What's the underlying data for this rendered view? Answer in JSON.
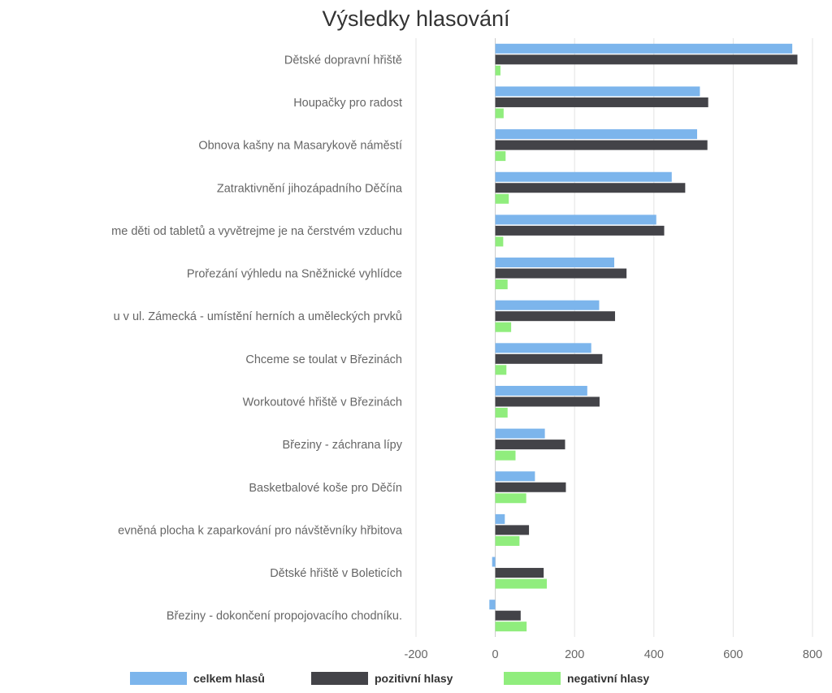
{
  "chart_data": {
    "type": "bar",
    "orientation": "horizontal",
    "title": "Výsledky hlasování",
    "xlabel": "",
    "ylabel": "",
    "xlim": [
      -200,
      800
    ],
    "ticks": [
      -200,
      0,
      200,
      400,
      600,
      800
    ],
    "grid": true,
    "legend_position": "bottom",
    "categories": [
      "Dětské dopravní hřiště",
      "Houpačky pro radost",
      "Obnova kašny na Masarykově náměstí",
      "Zatraktivnění jihozápadního Děčína",
      "me děti od tabletů a vyvětrejme je na čerstvém vzduchu",
      "Prořezání výhledu na Sněžnické vyhlídce",
      "u v ul. Zámecká - umístění herních a uměleckých prvků",
      "Chceme se toulat v Březinách",
      "Workoutové hřiště v Březinách",
      "Březiny - záchrana lípy",
      "Basketbalové koše pro Děčín",
      "evněná plocha k zaparkování pro návštěvníky hřbitova",
      "Dětské hřiště v Boleticích",
      "Březiny - dokončení propojovacího chodníku."
    ],
    "series": [
      {
        "name": "celkem hlasů",
        "color": "#7cb5ec",
        "values": [
          749,
          516,
          509,
          445,
          406,
          300,
          262,
          242,
          232,
          125,
          100,
          24,
          -8,
          -15
        ]
      },
      {
        "name": "pozitivní hlasy",
        "color": "#434348",
        "values": [
          762,
          537,
          535,
          479,
          426,
          331,
          302,
          270,
          263,
          176,
          178,
          85,
          122,
          64
        ]
      },
      {
        "name": "negativní hlasy",
        "color": "#90ed7d",
        "values": [
          13,
          21,
          26,
          34,
          20,
          31,
          40,
          28,
          31,
          51,
          78,
          61,
          130,
          79
        ]
      }
    ]
  }
}
